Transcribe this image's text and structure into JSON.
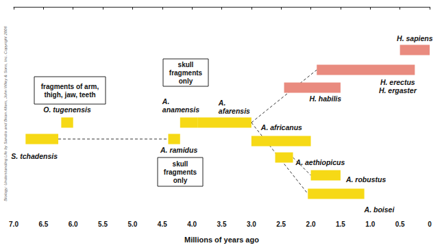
{
  "chart_data": {
    "type": "range_bar",
    "orientation": "horizontal",
    "xlabel": "Millions of years ago",
    "xlim": [
      7,
      0
    ],
    "xticks": [
      {
        "value": 7,
        "label": "7.0"
      },
      6.5,
      {
        "value": 6,
        "label": "6.0"
      },
      5.5,
      {
        "value": 5,
        "label": "5.0"
      },
      4.5,
      {
        "value": 4,
        "label": "4.0"
      },
      3.5,
      {
        "value": 3,
        "label": "3.0"
      },
      2.5,
      {
        "value": 2,
        "label": "2.0"
      },
      1.5,
      {
        "value": 1,
        "label": "1.0"
      },
      0.5,
      0
    ],
    "grid": false,
    "bars": [
      {
        "label": "S. tchadensis",
        "start": 6.8,
        "end": 6.25,
        "color": "#f6d916"
      },
      {
        "label": "O. tugenensis",
        "start": 6.2,
        "end": 6.0,
        "color": "#f6d916"
      },
      {
        "label": "A. ramidus",
        "start": 4.4,
        "end": 4.2,
        "color": "#f6d916"
      },
      {
        "label": "A. anamensis",
        "start": 4.2,
        "end": 3.9,
        "color": "#f6d916"
      },
      {
        "label": "A. afarensis",
        "start": 3.9,
        "end": 3.0,
        "color": "#f6d916"
      },
      {
        "label": "A. africanus",
        "start": 3.0,
        "end": 2.0,
        "color": "#f6d916"
      },
      {
        "label": "A. aethiopicus",
        "start": 2.6,
        "end": 2.3,
        "color": "#f6d916"
      },
      {
        "label": "A. robustus",
        "start": 2.0,
        "end": 1.5,
        "color": "#f6d916"
      },
      {
        "label": "A. boisei",
        "start": 2.05,
        "end": 1.1,
        "color": "#f6d916"
      },
      {
        "label": "H. habilis",
        "start": 2.45,
        "end": 1.5,
        "color": "#e98b7f"
      },
      {
        "label": "H. erectus\nH. ergaster",
        "start": 1.9,
        "end": 0.25,
        "color": "#e98b7f"
      },
      {
        "label": "H. sapiens",
        "start": 0.5,
        "end": 0,
        "color": "#e98b7f"
      }
    ],
    "annotations": [
      "fragments of arm, thigh, jaw, teeth",
      "skull fragments only",
      "skull fragments only",
      "Biology: Understanding Life by Sandra and Brian Alters, John Wiley & Sons, Inc. Copyright 2006"
    ]
  }
}
